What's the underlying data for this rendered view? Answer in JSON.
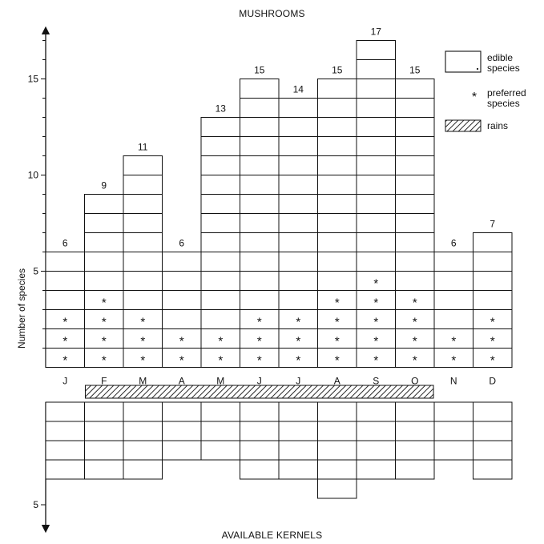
{
  "chart_data": [
    {
      "type": "bar",
      "title": "MUSHROOMS",
      "ylabel": "Number of species",
      "xlabel": "",
      "ylim": [
        0,
        17
      ],
      "yticks": [
        5,
        10,
        15
      ],
      "categories": [
        "J",
        "F",
        "M",
        "A",
        "M",
        "J",
        "J",
        "A",
        "S",
        "O",
        "N",
        "D"
      ],
      "series": [
        {
          "name": "edible species",
          "values": [
            6,
            9,
            11,
            6,
            13,
            15,
            14,
            15,
            17,
            15,
            6,
            7
          ]
        },
        {
          "name": "preferred species",
          "values": [
            3,
            4,
            3,
            2,
            2,
            3,
            3,
            4,
            5,
            4,
            2,
            3
          ]
        }
      ],
      "data_labels": [
        "6",
        "9",
        "11",
        "6",
        "13",
        "15",
        "14",
        "15",
        "17",
        "15",
        "6",
        "7"
      ],
      "rains": {
        "label": "rains",
        "start": "F",
        "end": "O"
      },
      "legend": {
        "position": "right",
        "items": [
          {
            "label": "edible species",
            "symbol": "box"
          },
          {
            "label": "preferred species",
            "symbol": "*"
          },
          {
            "label": "rains",
            "symbol": "hatched-bar"
          }
        ]
      },
      "grid": false
    },
    {
      "type": "bar",
      "title": "AVAILABLE KERNELS",
      "orientation": "downward",
      "categories": [
        "J",
        "F",
        "M",
        "A",
        "M",
        "J",
        "J",
        "A",
        "S",
        "O",
        "N",
        "D"
      ],
      "values": [
        4,
        4,
        4,
        3,
        3,
        4,
        4,
        5,
        4,
        4,
        3,
        4
      ],
      "yticks": [
        5
      ],
      "grid": false
    }
  ],
  "colors": {
    "ink": "#111111",
    "background": "#ffffff"
  },
  "star_symbol": "*"
}
